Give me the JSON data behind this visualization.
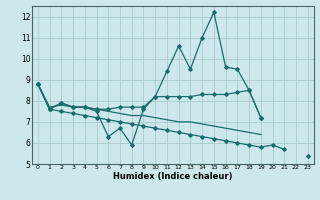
{
  "xlabel": "Humidex (Indice chaleur)",
  "bg_color": "#cce8ec",
  "grid_color": "#aacccc",
  "line_color": "#1a6b6b",
  "x_values": [
    0,
    1,
    2,
    3,
    4,
    5,
    6,
    7,
    8,
    9,
    10,
    11,
    12,
    13,
    14,
    15,
    16,
    17,
    18,
    19,
    20,
    21,
    22,
    23
  ],
  "lines": [
    [
      8.8,
      7.6,
      7.9,
      7.7,
      7.7,
      7.5,
      6.3,
      6.7,
      5.9,
      7.6,
      8.2,
      9.4,
      10.6,
      9.5,
      11.0,
      12.2,
      9.6,
      9.5,
      8.5,
      7.2,
      null,
      null,
      null,
      null
    ],
    [
      8.8,
      7.6,
      7.9,
      7.7,
      7.7,
      7.6,
      7.6,
      7.7,
      7.7,
      7.7,
      8.2,
      8.2,
      8.2,
      8.2,
      8.3,
      8.3,
      8.3,
      8.4,
      8.5,
      7.2,
      null,
      null,
      null,
      null
    ],
    [
      8.8,
      7.7,
      7.8,
      7.7,
      7.7,
      7.6,
      7.5,
      7.4,
      7.3,
      7.3,
      7.2,
      7.1,
      7.0,
      7.0,
      6.9,
      6.8,
      6.7,
      6.6,
      6.5,
      6.4,
      null,
      null,
      null,
      null
    ],
    [
      8.8,
      7.6,
      7.5,
      7.4,
      7.3,
      7.2,
      7.1,
      7.0,
      6.9,
      6.8,
      6.7,
      6.6,
      6.5,
      6.4,
      6.3,
      6.2,
      6.1,
      6.0,
      5.9,
      5.8,
      5.9,
      5.7,
      null,
      5.4
    ]
  ],
  "markers": [
    true,
    true,
    false,
    true
  ],
  "ylim": [
    5,
    12.5
  ],
  "xlim": [
    -0.5,
    23.5
  ],
  "yticks": [
    5,
    6,
    7,
    8,
    9,
    10,
    11,
    12
  ],
  "xticks": [
    0,
    1,
    2,
    3,
    4,
    5,
    6,
    7,
    8,
    9,
    10,
    11,
    12,
    13,
    14,
    15,
    16,
    17,
    18,
    19,
    20,
    21,
    22,
    23
  ]
}
